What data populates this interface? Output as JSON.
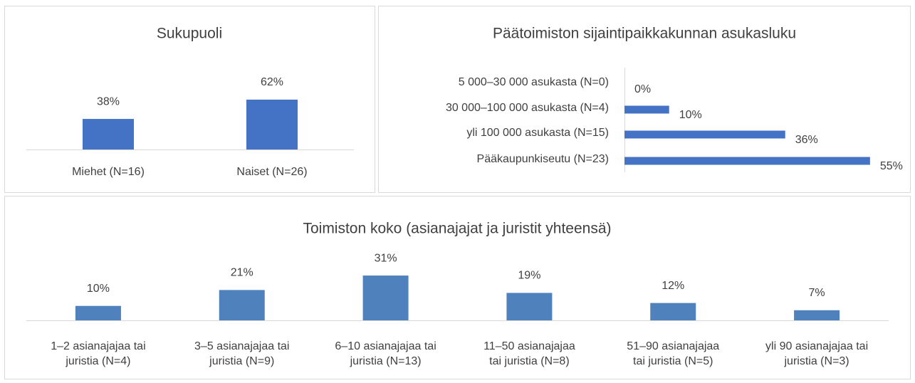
{
  "chart_data": [
    {
      "type": "bar",
      "title": "Sukupuoli",
      "categories": [
        "Miehet (N=16)",
        "Naiset (N=26)"
      ],
      "values": [
        38,
        62
      ],
      "value_labels": [
        "38%",
        "62%"
      ],
      "color": "#4472c4"
    },
    {
      "type": "barh",
      "title": "Päätoimiston sijaintipaikkakunnan asukasluku",
      "categories": [
        "5 000–30 000 asukasta (N=0)",
        "30 000–100 000 asukasta (N=4)",
        "yli 100 000 asukasta (N=15)",
        "Pääkaupunkiseutu (N=23)"
      ],
      "values": [
        0,
        10,
        36,
        55
      ],
      "value_labels": [
        "0%",
        "10%",
        "36%",
        "55%"
      ],
      "color": "#4472c4"
    },
    {
      "type": "bar",
      "title": "Toimiston koko (asianajajat ja juristit yhteensä)",
      "categories": [
        "1–2 asianajajaa tai\njuristia (N=4)",
        "3–5 asianajajaa tai\njuristia (N=9)",
        "6–10 asianajajaa tai\njuristia (N=13)",
        "11–50 asianajajaa\ntai juristia (N=8)",
        "51–90 asianajajaa\ntai juristia (N=5)",
        "yli 90 asianajajaa tai\njuristia (N=3)"
      ],
      "values": [
        10,
        21,
        31,
        19,
        12,
        7
      ],
      "value_labels": [
        "10%",
        "21%",
        "31%",
        "19%",
        "12%",
        "7%"
      ],
      "color": "#4f81bd"
    }
  ]
}
